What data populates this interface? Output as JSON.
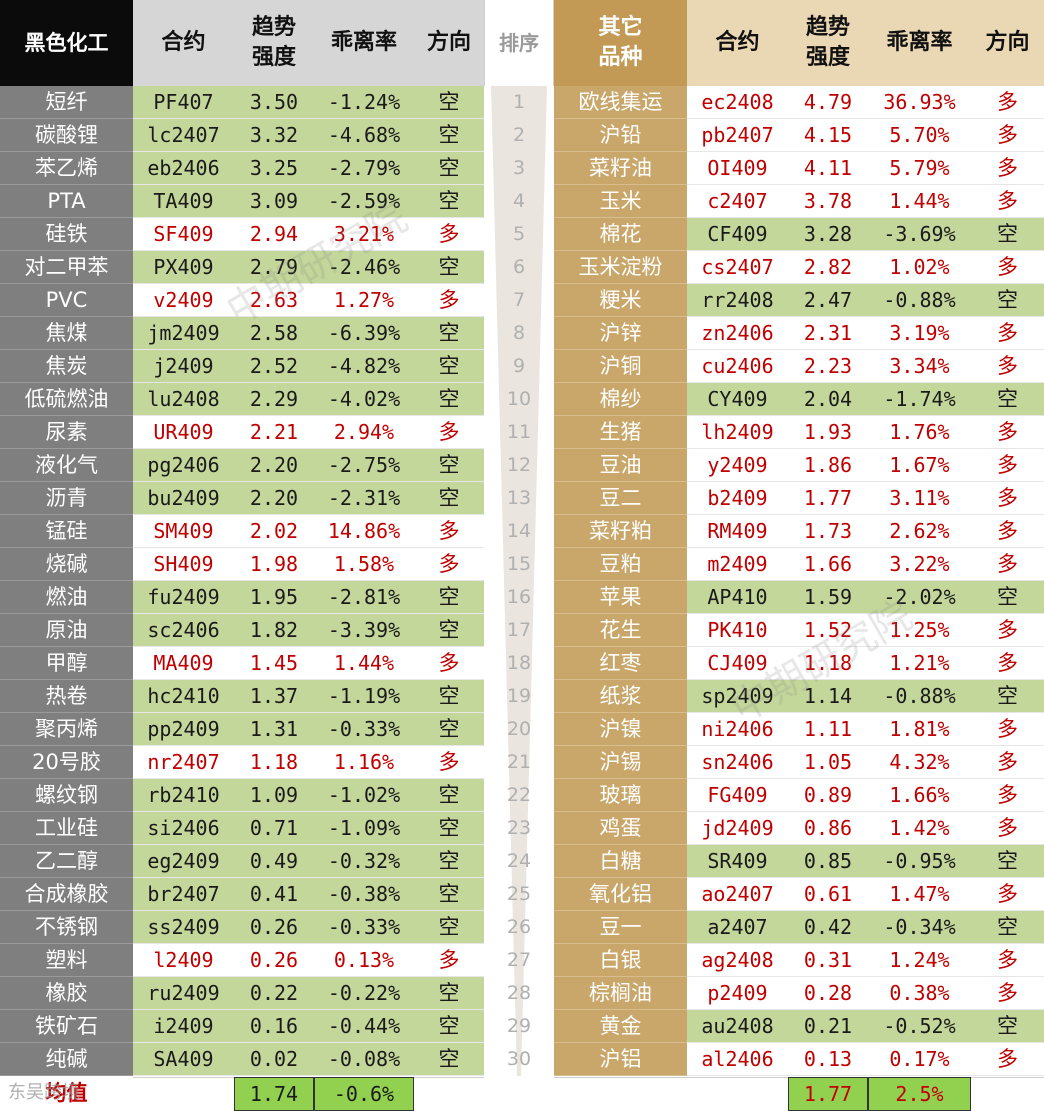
{
  "header": {
    "left_title": "黑色化工",
    "contract": "合约",
    "strength_line1": "趋势",
    "strength_line2": "强度",
    "deviation": "乖离率",
    "direction": "方向",
    "rank": "排序",
    "right_title_line1": "其它",
    "right_title_line2": "品种"
  },
  "colors": {
    "green": "#c4d79b",
    "red_text": "#c00000",
    "left_name_bg": "#7f7f7f",
    "right_name_bg": "#c9a76b",
    "footer_box": "#92d050"
  },
  "ranks": [
    "1",
    "2",
    "3",
    "4",
    "5",
    "6",
    "7",
    "8",
    "9",
    "10",
    "11",
    "12",
    "13",
    "14",
    "15",
    "16",
    "17",
    "18",
    "19",
    "20",
    "21",
    "22",
    "23",
    "24",
    "25",
    "26",
    "27",
    "28",
    "29",
    "30"
  ],
  "left_rows": [
    {
      "name": "短纤",
      "contract": "PF407",
      "strength": "3.50",
      "deviation": "-1.24%",
      "direction": "空"
    },
    {
      "name": "碳酸锂",
      "contract": "lc2407",
      "strength": "3.32",
      "deviation": "-4.68%",
      "direction": "空"
    },
    {
      "name": "苯乙烯",
      "contract": "eb2406",
      "strength": "3.25",
      "deviation": "-2.79%",
      "direction": "空"
    },
    {
      "name": "PTA",
      "contract": "TA409",
      "strength": "3.09",
      "deviation": "-2.59%",
      "direction": "空"
    },
    {
      "name": "硅铁",
      "contract": "SF409",
      "strength": "2.94",
      "deviation": "3.21%",
      "direction": "多"
    },
    {
      "name": "对二甲苯",
      "contract": "PX409",
      "strength": "2.79",
      "deviation": "-2.46%",
      "direction": "空"
    },
    {
      "name": "PVC",
      "contract": "v2409",
      "strength": "2.63",
      "deviation": "1.27%",
      "direction": "多"
    },
    {
      "name": "焦煤",
      "contract": "jm2409",
      "strength": "2.58",
      "deviation": "-6.39%",
      "direction": "空"
    },
    {
      "name": "焦炭",
      "contract": "j2409",
      "strength": "2.52",
      "deviation": "-4.82%",
      "direction": "空"
    },
    {
      "name": "低硫燃油",
      "contract": "lu2408",
      "strength": "2.29",
      "deviation": "-4.02%",
      "direction": "空"
    },
    {
      "name": "尿素",
      "contract": "UR409",
      "strength": "2.21",
      "deviation": "2.94%",
      "direction": "多"
    },
    {
      "name": "液化气",
      "contract": "pg2406",
      "strength": "2.20",
      "deviation": "-2.75%",
      "direction": "空"
    },
    {
      "name": "沥青",
      "contract": "bu2409",
      "strength": "2.20",
      "deviation": "-2.31%",
      "direction": "空"
    },
    {
      "name": "锰硅",
      "contract": "SM409",
      "strength": "2.02",
      "deviation": "14.86%",
      "direction": "多"
    },
    {
      "name": "烧碱",
      "contract": "SH409",
      "strength": "1.98",
      "deviation": "1.58%",
      "direction": "多"
    },
    {
      "name": "燃油",
      "contract": "fu2409",
      "strength": "1.95",
      "deviation": "-2.81%",
      "direction": "空"
    },
    {
      "name": "原油",
      "contract": "sc2406",
      "strength": "1.82",
      "deviation": "-3.39%",
      "direction": "空"
    },
    {
      "name": "甲醇",
      "contract": "MA409",
      "strength": "1.45",
      "deviation": "1.44%",
      "direction": "多"
    },
    {
      "name": "热卷",
      "contract": "hc2410",
      "strength": "1.37",
      "deviation": "-1.19%",
      "direction": "空"
    },
    {
      "name": "聚丙烯",
      "contract": "pp2409",
      "strength": "1.31",
      "deviation": "-0.33%",
      "direction": "空"
    },
    {
      "name": "20号胶",
      "contract": "nr2407",
      "strength": "1.18",
      "deviation": "1.16%",
      "direction": "多"
    },
    {
      "name": "螺纹钢",
      "contract": "rb2410",
      "strength": "1.09",
      "deviation": "-1.02%",
      "direction": "空"
    },
    {
      "name": "工业硅",
      "contract": "si2406",
      "strength": "0.71",
      "deviation": "-1.09%",
      "direction": "空"
    },
    {
      "name": "乙二醇",
      "contract": "eg2409",
      "strength": "0.49",
      "deviation": "-0.32%",
      "direction": "空"
    },
    {
      "name": "合成橡胶",
      "contract": "br2407",
      "strength": "0.41",
      "deviation": "-0.38%",
      "direction": "空"
    },
    {
      "name": "不锈钢",
      "contract": "ss2409",
      "strength": "0.26",
      "deviation": "-0.33%",
      "direction": "空"
    },
    {
      "name": "塑料",
      "contract": "l2409",
      "strength": "0.26",
      "deviation": "0.13%",
      "direction": "多"
    },
    {
      "name": "橡胶",
      "contract": "ru2409",
      "strength": "0.22",
      "deviation": "-0.22%",
      "direction": "空"
    },
    {
      "name": "铁矿石",
      "contract": "i2409",
      "strength": "0.16",
      "deviation": "-0.44%",
      "direction": "空"
    },
    {
      "name": "纯碱",
      "contract": "SA409",
      "strength": "0.02",
      "deviation": "-0.08%",
      "direction": "空"
    }
  ],
  "right_rows": [
    {
      "name": "欧线集运",
      "contract": "ec2408",
      "strength": "4.79",
      "deviation": "36.93%",
      "direction": "多"
    },
    {
      "name": "沪铅",
      "contract": "pb2407",
      "strength": "4.15",
      "deviation": "5.70%",
      "direction": "多"
    },
    {
      "name": "菜籽油",
      "contract": "OI409",
      "strength": "4.11",
      "deviation": "5.79%",
      "direction": "多"
    },
    {
      "name": "玉米",
      "contract": "c2407",
      "strength": "3.78",
      "deviation": "1.44%",
      "direction": "多"
    },
    {
      "name": "棉花",
      "contract": "CF409",
      "strength": "3.28",
      "deviation": "-3.69%",
      "direction": "空"
    },
    {
      "name": "玉米淀粉",
      "contract": "cs2407",
      "strength": "2.82",
      "deviation": "1.02%",
      "direction": "多"
    },
    {
      "name": "粳米",
      "contract": "rr2408",
      "strength": "2.47",
      "deviation": "-0.88%",
      "direction": "空"
    },
    {
      "name": "沪锌",
      "contract": "zn2406",
      "strength": "2.31",
      "deviation": "3.19%",
      "direction": "多"
    },
    {
      "name": "沪铜",
      "contract": "cu2406",
      "strength": "2.23",
      "deviation": "3.34%",
      "direction": "多"
    },
    {
      "name": "棉纱",
      "contract": "CY409",
      "strength": "2.04",
      "deviation": "-1.74%",
      "direction": "空"
    },
    {
      "name": "生猪",
      "contract": "lh2409",
      "strength": "1.93",
      "deviation": "1.76%",
      "direction": "多"
    },
    {
      "name": "豆油",
      "contract": "y2409",
      "strength": "1.86",
      "deviation": "1.67%",
      "direction": "多"
    },
    {
      "name": "豆二",
      "contract": "b2409",
      "strength": "1.77",
      "deviation": "3.11%",
      "direction": "多"
    },
    {
      "name": "菜籽粕",
      "contract": "RM409",
      "strength": "1.73",
      "deviation": "2.62%",
      "direction": "多"
    },
    {
      "name": "豆粕",
      "contract": "m2409",
      "strength": "1.66",
      "deviation": "3.22%",
      "direction": "多"
    },
    {
      "name": "苹果",
      "contract": "AP410",
      "strength": "1.59",
      "deviation": "-2.02%",
      "direction": "空"
    },
    {
      "name": "花生",
      "contract": "PK410",
      "strength": "1.52",
      "deviation": "1.25%",
      "direction": "多"
    },
    {
      "name": "红枣",
      "contract": "CJ409",
      "strength": "1.18",
      "deviation": "1.21%",
      "direction": "多"
    },
    {
      "name": "纸浆",
      "contract": "sp2409",
      "strength": "1.14",
      "deviation": "-0.88%",
      "direction": "空"
    },
    {
      "name": "沪镍",
      "contract": "ni2406",
      "strength": "1.11",
      "deviation": "1.81%",
      "direction": "多"
    },
    {
      "name": "沪锡",
      "contract": "sn2406",
      "strength": "1.05",
      "deviation": "4.32%",
      "direction": "多"
    },
    {
      "name": "玻璃",
      "contract": "FG409",
      "strength": "0.89",
      "deviation": "1.66%",
      "direction": "多"
    },
    {
      "name": "鸡蛋",
      "contract": "jd2409",
      "strength": "0.86",
      "deviation": "1.42%",
      "direction": "多"
    },
    {
      "name": "白糖",
      "contract": "SR409",
      "strength": "0.85",
      "deviation": "-0.95%",
      "direction": "空"
    },
    {
      "name": "氧化铝",
      "contract": "ao2407",
      "strength": "0.61",
      "deviation": "1.47%",
      "direction": "多"
    },
    {
      "name": "豆一",
      "contract": "a2407",
      "strength": "0.42",
      "deviation": "-0.34%",
      "direction": "空"
    },
    {
      "name": "白银",
      "contract": "ag2408",
      "strength": "0.31",
      "deviation": "1.24%",
      "direction": "多"
    },
    {
      "name": "棕榈油",
      "contract": "p2409",
      "strength": "0.28",
      "deviation": "0.38%",
      "direction": "多"
    },
    {
      "name": "黄金",
      "contract": "au2408",
      "strength": "0.21",
      "deviation": "-0.52%",
      "direction": "空"
    },
    {
      "name": "沪铝",
      "contract": "al2406",
      "strength": "0.13",
      "deviation": "0.17%",
      "direction": "多"
    }
  ],
  "footer": {
    "label": "均值",
    "left_strength_avg": "1.74",
    "left_deviation_avg": "-0.6%",
    "right_strength_avg": "1.77",
    "right_deviation_avg": "2.5%"
  },
  "watermark": {
    "text": "中期研究院",
    "logo_text": "东吴跨境"
  }
}
